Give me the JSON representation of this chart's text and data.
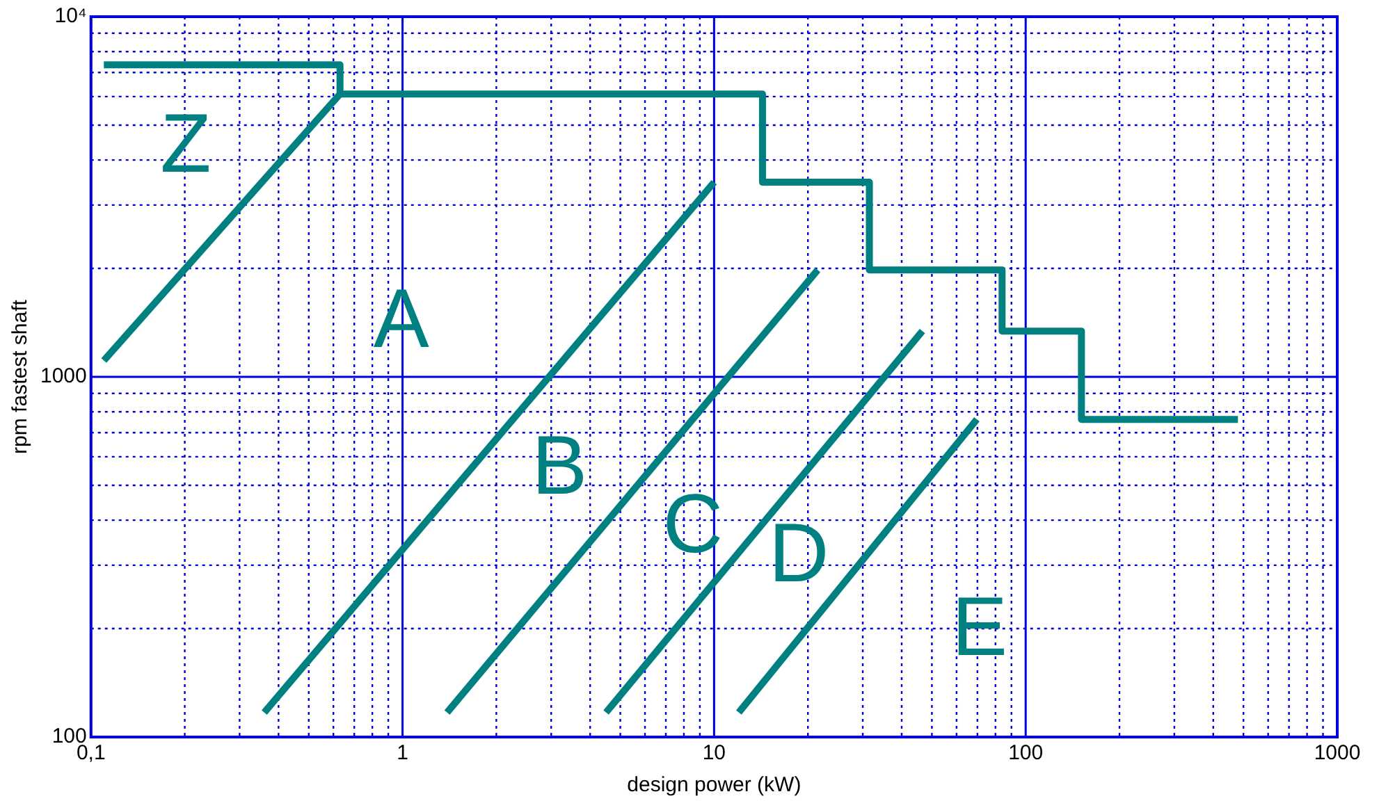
{
  "chart_data": {
    "type": "line",
    "xlabel": "design power (kW)",
    "ylabel": "rpm fastest shaft",
    "log": "xy",
    "grid": true,
    "legend": false,
    "marker": "none",
    "line_style": "solid",
    "xlim": [
      0.1,
      1000
    ],
    "ylim": [
      100,
      10000
    ],
    "xticks": [
      {
        "value": 0.1,
        "label": "0,1"
      },
      {
        "value": 0.2,
        "label": null
      },
      {
        "value": 0.3,
        "label": null
      },
      {
        "value": 0.4,
        "label": null
      },
      {
        "value": 0.5,
        "label": null
      },
      {
        "value": 0.6,
        "label": null
      },
      {
        "value": 0.7,
        "label": null
      },
      {
        "value": 0.8,
        "label": null
      },
      {
        "value": 0.9,
        "label": null
      },
      1,
      {
        "value": 2,
        "label": null
      },
      {
        "value": 3,
        "label": null
      },
      {
        "value": 4,
        "label": null
      },
      {
        "value": 5,
        "label": null
      },
      {
        "value": 6,
        "label": null
      },
      {
        "value": 7,
        "label": null
      },
      {
        "value": 8,
        "label": null
      },
      {
        "value": 9,
        "label": null
      },
      10,
      {
        "value": 20,
        "label": null
      },
      {
        "value": 30,
        "label": null
      },
      {
        "value": 40,
        "label": null
      },
      {
        "value": 50,
        "label": null
      },
      {
        "value": 60,
        "label": null
      },
      {
        "value": 70,
        "label": null
      },
      {
        "value": 80,
        "label": null
      },
      {
        "value": 90,
        "label": null
      },
      100,
      {
        "value": 200,
        "label": null
      },
      {
        "value": 300,
        "label": null
      },
      {
        "value": 400,
        "label": null
      },
      {
        "value": 500,
        "label": null
      },
      {
        "value": 600,
        "label": null
      },
      {
        "value": 700,
        "label": null
      },
      {
        "value": 800,
        "label": null
      },
      {
        "value": 900,
        "label": null
      },
      1000
    ],
    "yticks": [
      100,
      {
        "value": 200,
        "label": null
      },
      {
        "value": 300,
        "label": null
      },
      {
        "value": 400,
        "label": null
      },
      {
        "value": 500,
        "label": null
      },
      {
        "value": 600,
        "label": null
      },
      {
        "value": 700,
        "label": null
      },
      {
        "value": 800,
        "label": null
      },
      {
        "value": 900,
        "label": null
      },
      1000,
      {
        "value": 2000,
        "label": null
      },
      {
        "value": 3000,
        "label": null
      },
      {
        "value": 4000,
        "label": null
      },
      {
        "value": 5000,
        "label": null
      },
      {
        "value": 6000,
        "label": null
      },
      {
        "value": 7000,
        "label": null
      },
      {
        "value": 8000,
        "label": null
      },
      {
        "value": 9000,
        "label": null
      },
      {
        "value": 10000,
        "label": "10⁴"
      }
    ],
    "series": [
      {
        "color": "#008080",
        "x": [
          0.11,
          0.63,
          0.63,
          14.3,
          14.3,
          31.5,
          31.5,
          84,
          84,
          151,
          151,
          480
        ],
        "values": [
          7350,
          7350,
          6100,
          6100,
          3470,
          3470,
          1980,
          1980,
          1340,
          1340,
          762,
          762
        ]
      },
      {
        "color": "#008080",
        "x": [
          0.11,
          0.63
        ],
        "values": [
          1110,
          6100
        ]
      },
      {
        "color": "#008080",
        "x": [
          0.36,
          10
        ],
        "values": [
          117,
          3470
        ]
      },
      {
        "color": "#008080",
        "x": [
          1.39,
          21.5
        ],
        "values": [
          117,
          1980
        ]
      },
      {
        "color": "#008080",
        "x": [
          4.5,
          46.6
        ],
        "values": [
          117,
          1340
        ]
      },
      {
        "color": "#008080",
        "x": [
          12,
          69.7
        ],
        "values": [
          117,
          762
        ]
      }
    ],
    "annotations": [
      "Z",
      "A",
      "B",
      "C",
      "D",
      "E"
    ]
  }
}
